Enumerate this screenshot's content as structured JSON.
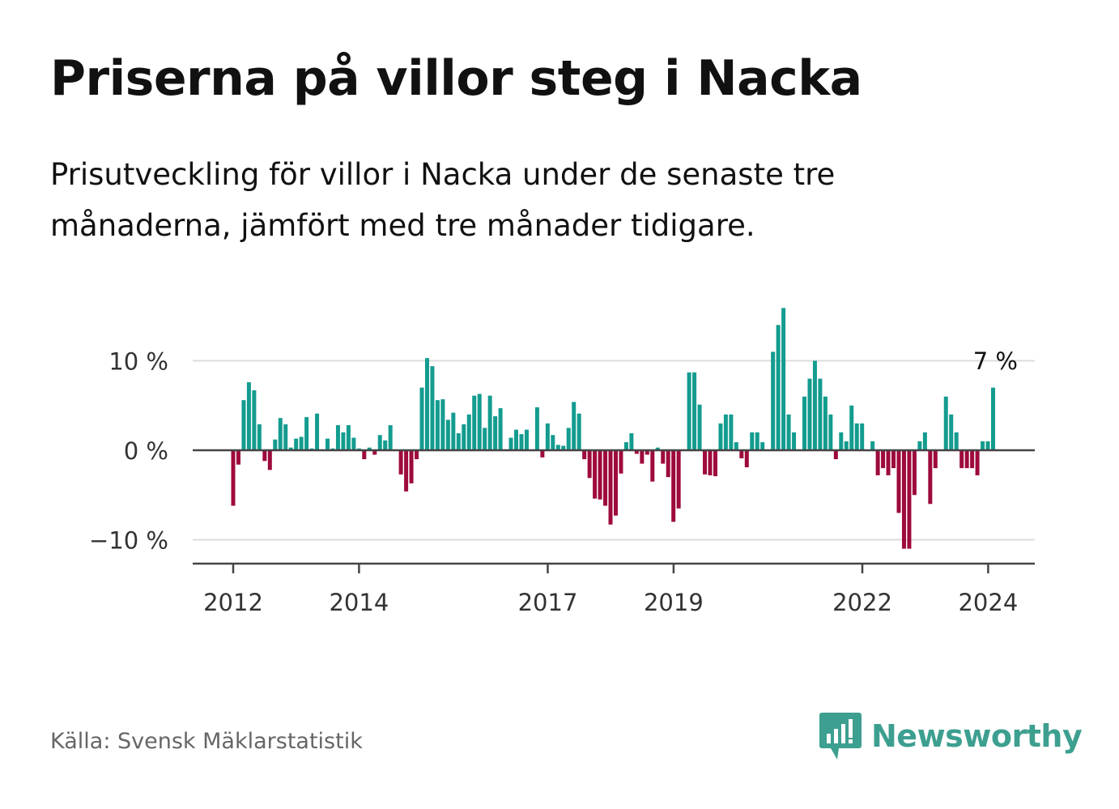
{
  "title": "Priserna på villor steg i Nacka",
  "subtitle": "Prisutveckling för villor i Nacka under de senaste tre månaderna, jämfört med tre månader tidigare.",
  "source": "Källa: Svensk Mäklarstatistik",
  "brand": "Newsworthy",
  "colors": {
    "positive": "#139c8f",
    "negative": "#9e0a3c",
    "brand": "#3d9f90"
  },
  "chart_data": {
    "type": "bar",
    "title": "",
    "xlabel": "",
    "ylabel": "",
    "ylim": [
      -12.5,
      16
    ],
    "yticks": [
      10,
      0,
      -10
    ],
    "ytick_labels": [
      "10 %",
      "0 %",
      "−10 %"
    ],
    "xticks": [
      "2012",
      "2014",
      "2017",
      "2019",
      "2022",
      "2024"
    ],
    "xtick_positions": [
      2012.0,
      2014.0,
      2017.0,
      2019.0,
      2022.0,
      2024.0
    ],
    "start": 2012.0,
    "step_years": 0.0833,
    "end_label": "7 %",
    "values": [
      -6.2,
      -1.6,
      5.6,
      7.6,
      6.7,
      2.9,
      -1.2,
      -2.2,
      1.2,
      3.6,
      2.9,
      0.3,
      1.3,
      1.5,
      3.7,
      0.2,
      4.1,
      0.1,
      1.3,
      0.2,
      2.8,
      2.0,
      2.8,
      1.4,
      0.2,
      -1.0,
      0.3,
      -0.5,
      1.7,
      1.1,
      2.8,
      0.1,
      -2.7,
      -4.6,
      -3.7,
      -1.0,
      7.0,
      10.3,
      9.4,
      5.6,
      5.7,
      3.4,
      4.2,
      1.9,
      2.9,
      4.0,
      6.1,
      6.3,
      2.5,
      6.1,
      3.8,
      4.7,
      0.1,
      1.4,
      2.3,
      1.8,
      2.3,
      0.1,
      4.8,
      -0.8,
      3.0,
      1.7,
      0.6,
      0.5,
      2.5,
      5.4,
      4.1,
      -1.0,
      -3.1,
      -5.4,
      -5.5,
      -6.2,
      -8.3,
      -7.3,
      -2.6,
      0.9,
      1.9,
      -0.4,
      -1.5,
      -0.5,
      -3.5,
      0.3,
      -1.5,
      -3.0,
      -8.0,
      -6.5,
      0.1,
      8.7,
      8.7,
      5.1,
      -2.7,
      -2.8,
      -2.9,
      3.0,
      4.0,
      4.0,
      0.9,
      -0.9,
      -1.9,
      2.0,
      2.0,
      0.9,
      0.0,
      11.0,
      14.0,
      15.9,
      4.0,
      2.0,
      0.0,
      6.0,
      8.0,
      10.0,
      8.0,
      6.0,
      4.0,
      -1.0,
      2.0,
      1.0,
      5.0,
      3.0,
      3.0,
      0.0,
      1.0,
      -2.8,
      -2.0,
      -2.8,
      -2.0,
      -7.0,
      -11.0,
      -11.0,
      -5.0,
      1.0,
      2.0,
      -6.0,
      -2.0,
      0.0,
      6.0,
      4.0,
      2.0,
      -2.0,
      -2.0,
      -2.0,
      -2.8,
      1.0,
      1.0,
      7.0
    ]
  }
}
